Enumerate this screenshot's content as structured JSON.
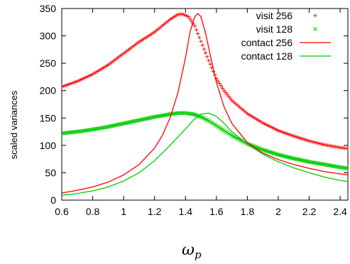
{
  "chart_data": {
    "type": "line",
    "xlabel_main": "ω",
    "xlabel_sub": "p",
    "ylabel": "scaled variances",
    "xlim": [
      0.6,
      2.45
    ],
    "ylim": [
      0,
      350
    ],
    "xticks": [
      "0.6",
      "0.8",
      "1",
      "1.2",
      "1.4",
      "1.6",
      "1.8",
      "2",
      "2.2",
      "2.4"
    ],
    "xtick_values": [
      0.6,
      0.8,
      1.0,
      1.2,
      1.4,
      1.6,
      1.8,
      2.0,
      2.2,
      2.4
    ],
    "yticks": [
      "0",
      "50",
      "100",
      "150",
      "200",
      "250",
      "300",
      "350"
    ],
    "ytick_values": [
      0,
      50,
      100,
      150,
      200,
      250,
      300,
      350
    ],
    "grid": false,
    "legend_position": "top-right",
    "series": [
      {
        "name": "visit 256",
        "style": "plus",
        "color": "#ff0000",
        "x": [
          0.6,
          0.7,
          0.8,
          0.9,
          1.0,
          1.1,
          1.2,
          1.3,
          1.35,
          1.38,
          1.42,
          1.46,
          1.5,
          1.55,
          1.6,
          1.65,
          1.7,
          1.8,
          1.9,
          2.0,
          2.1,
          2.2,
          2.3,
          2.4,
          2.45
        ],
        "y": [
          207,
          217,
          230,
          247,
          268,
          289,
          307,
          330,
          339,
          340,
          335,
          318,
          290,
          255,
          222,
          200,
          182,
          158,
          141,
          127,
          117,
          108,
          101,
          96,
          94
        ]
      },
      {
        "name": "visit 128",
        "style": "cross",
        "color": "#00cc00",
        "x": [
          0.6,
          0.7,
          0.8,
          0.9,
          1.0,
          1.1,
          1.2,
          1.3,
          1.35,
          1.4,
          1.45,
          1.5,
          1.55,
          1.6,
          1.7,
          1.8,
          1.9,
          2.0,
          2.1,
          2.2,
          2.3,
          2.4,
          2.45
        ],
        "y": [
          122,
          125,
          129,
          134,
          140,
          146,
          152,
          157,
          159,
          159,
          157,
          152,
          145,
          136,
          118,
          103,
          92,
          83,
          76,
          70,
          65,
          60,
          58
        ]
      },
      {
        "name": "contact 256",
        "style": "line",
        "color": "#ff0000",
        "x": [
          0.6,
          0.7,
          0.8,
          0.9,
          1.0,
          1.1,
          1.2,
          1.25,
          1.3,
          1.35,
          1.4,
          1.43,
          1.46,
          1.48,
          1.5,
          1.53,
          1.56,
          1.6,
          1.65,
          1.7,
          1.8,
          1.9,
          2.0,
          2.1,
          2.2,
          2.3,
          2.4,
          2.45
        ],
        "y": [
          13,
          18,
          24,
          33,
          46,
          65,
          95,
          118,
          150,
          195,
          260,
          308,
          335,
          341,
          335,
          305,
          265,
          215,
          170,
          140,
          105,
          86,
          74,
          65,
          58,
          52,
          48,
          46
        ]
      },
      {
        "name": "contact 128",
        "style": "line",
        "color": "#00cc00",
        "x": [
          0.6,
          0.7,
          0.8,
          0.9,
          1.0,
          1.1,
          1.2,
          1.3,
          1.35,
          1.4,
          1.45,
          1.5,
          1.55,
          1.6,
          1.65,
          1.7,
          1.8,
          1.9,
          2.0,
          2.1,
          2.2,
          2.3,
          2.4,
          2.45
        ],
        "y": [
          9,
          12,
          17,
          24,
          35,
          50,
          72,
          100,
          115,
          130,
          146,
          157,
          159,
          153,
          140,
          125,
          102,
          84,
          70,
          59,
          50,
          42,
          36,
          34
        ]
      }
    ]
  }
}
